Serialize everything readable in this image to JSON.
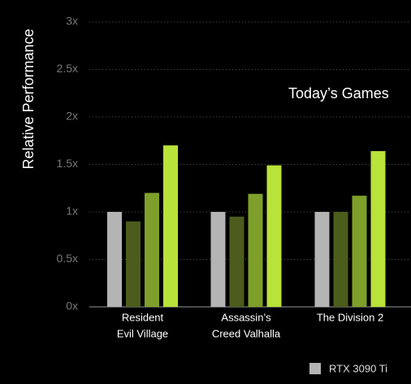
{
  "chart_data": {
    "type": "bar",
    "ylabel": "Relative Performance",
    "annotation": "Today’s Games",
    "categories": [
      [
        "Resident",
        "Evil Village"
      ],
      [
        "Assassin’s",
        "Creed Valhalla"
      ],
      [
        "The Division 2"
      ]
    ],
    "series": [
      {
        "name": "RTX 3090 Ti",
        "color": "#b4b4b4",
        "values": [
          1.0,
          1.0,
          1.0
        ]
      },
      {
        "color": "#4b5c1c",
        "values": [
          0.9,
          0.95,
          1.0
        ]
      },
      {
        "color": "#7e9f2a",
        "values": [
          1.2,
          1.19,
          1.17
        ]
      },
      {
        "color": "#b9e23a",
        "values": [
          1.7,
          1.49,
          1.64
        ]
      }
    ],
    "ylim": [
      0,
      3
    ],
    "yticks": [
      {
        "value": 0,
        "label": "0x"
      },
      {
        "value": 0.5,
        "label": "0.5x"
      },
      {
        "value": 1,
        "label": "1x"
      },
      {
        "value": 1.5,
        "label": "1.5x"
      },
      {
        "value": 2,
        "label": "2x"
      },
      {
        "value": 2.5,
        "label": "2.5x"
      },
      {
        "value": 3,
        "label": "3x"
      }
    ],
    "grid": true
  }
}
